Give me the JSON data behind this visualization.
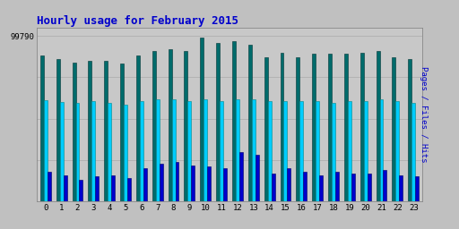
{
  "title": "Hourly usage for February 2015",
  "ylabel": "Pages / Files / Hits",
  "hours": [
    0,
    1,
    2,
    3,
    4,
    5,
    6,
    7,
    8,
    9,
    10,
    11,
    12,
    13,
    14,
    15,
    16,
    17,
    18,
    19,
    20,
    21,
    22,
    23
  ],
  "hits": [
    88000,
    86000,
    84000,
    85000,
    85000,
    83000,
    88000,
    91000,
    92000,
    91000,
    99000,
    95500,
    97000,
    94500,
    87000,
    90000,
    87000,
    89000,
    89000,
    89000,
    90000,
    91000,
    87000,
    86000
  ],
  "files": [
    61000,
    60000,
    59500,
    60500,
    59500,
    58500,
    60500,
    61500,
    61500,
    60500,
    61500,
    60500,
    61500,
    61500,
    60500,
    60500,
    60500,
    60500,
    59500,
    60500,
    60500,
    61500,
    60500,
    59500
  ],
  "pages": [
    18000,
    16000,
    13000,
    15000,
    16000,
    14000,
    20000,
    23000,
    24000,
    22000,
    21000,
    20000,
    30000,
    28000,
    17000,
    20000,
    18000,
    16000,
    18000,
    17000,
    17000,
    19000,
    16000,
    15000
  ],
  "hits_color": "#006b6b",
  "files_color": "#00ccff",
  "pages_color": "#0000cc",
  "bg_color": "#c0c0c0",
  "plot_bg_color": "#c8c8c8",
  "grid_color": "#aaaaaa",
  "title_color": "#0000cc",
  "ylabel_color": "#0000cc",
  "ymax": 105000,
  "ytick_val": 99790,
  "ytick_label": "99790",
  "figwidth": 5.12,
  "figheight": 2.56,
  "dpi": 100
}
